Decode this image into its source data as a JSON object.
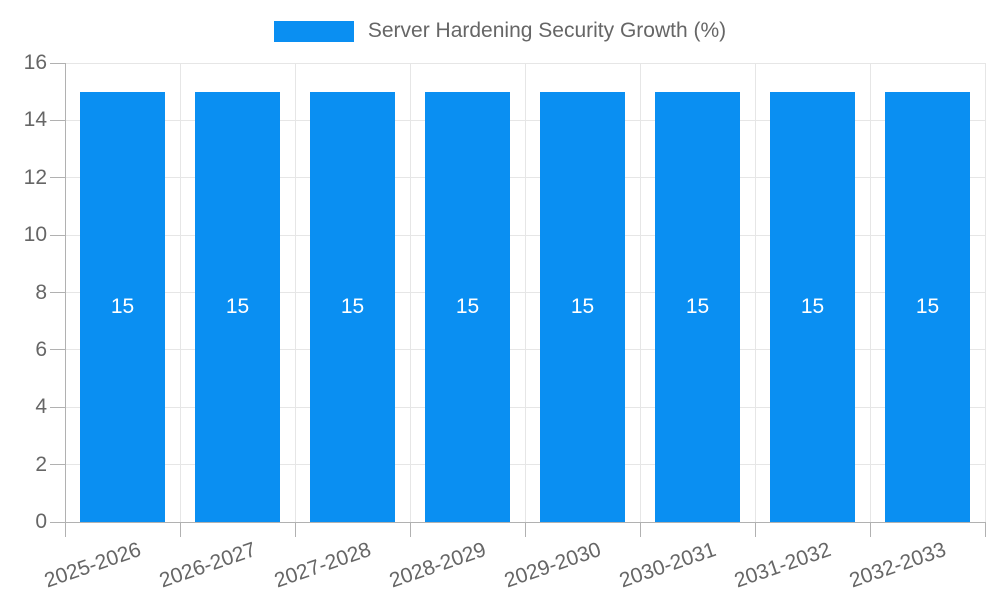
{
  "legend": {
    "label": "Server Hardening Security Growth (%)",
    "position": "top"
  },
  "colors": {
    "bar": "#0a8ff2",
    "grid": "#e6e6e6",
    "axis": "#b1b1b1",
    "text": "#666666",
    "bar_label": "#ffffff",
    "background": "#ffffff"
  },
  "chart_data": {
    "type": "bar",
    "title": "Server Hardening Security Growth (%)",
    "categories": [
      "2025-2026",
      "2026-2027",
      "2027-2028",
      "2028-2029",
      "2029-2030",
      "2030-2031",
      "2031-2032",
      "2032-2033"
    ],
    "values": [
      15,
      15,
      15,
      15,
      15,
      15,
      15,
      15
    ],
    "bar_value_labels": [
      "15",
      "15",
      "15",
      "15",
      "15",
      "15",
      "15",
      "15"
    ],
    "xlabel": "",
    "ylabel": "",
    "ylim": [
      0,
      16
    ],
    "yticks": [
      0,
      2,
      4,
      6,
      8,
      10,
      12,
      14,
      16
    ],
    "grid": true,
    "legend_position": "top",
    "x_tick_rotation_deg": -19
  }
}
